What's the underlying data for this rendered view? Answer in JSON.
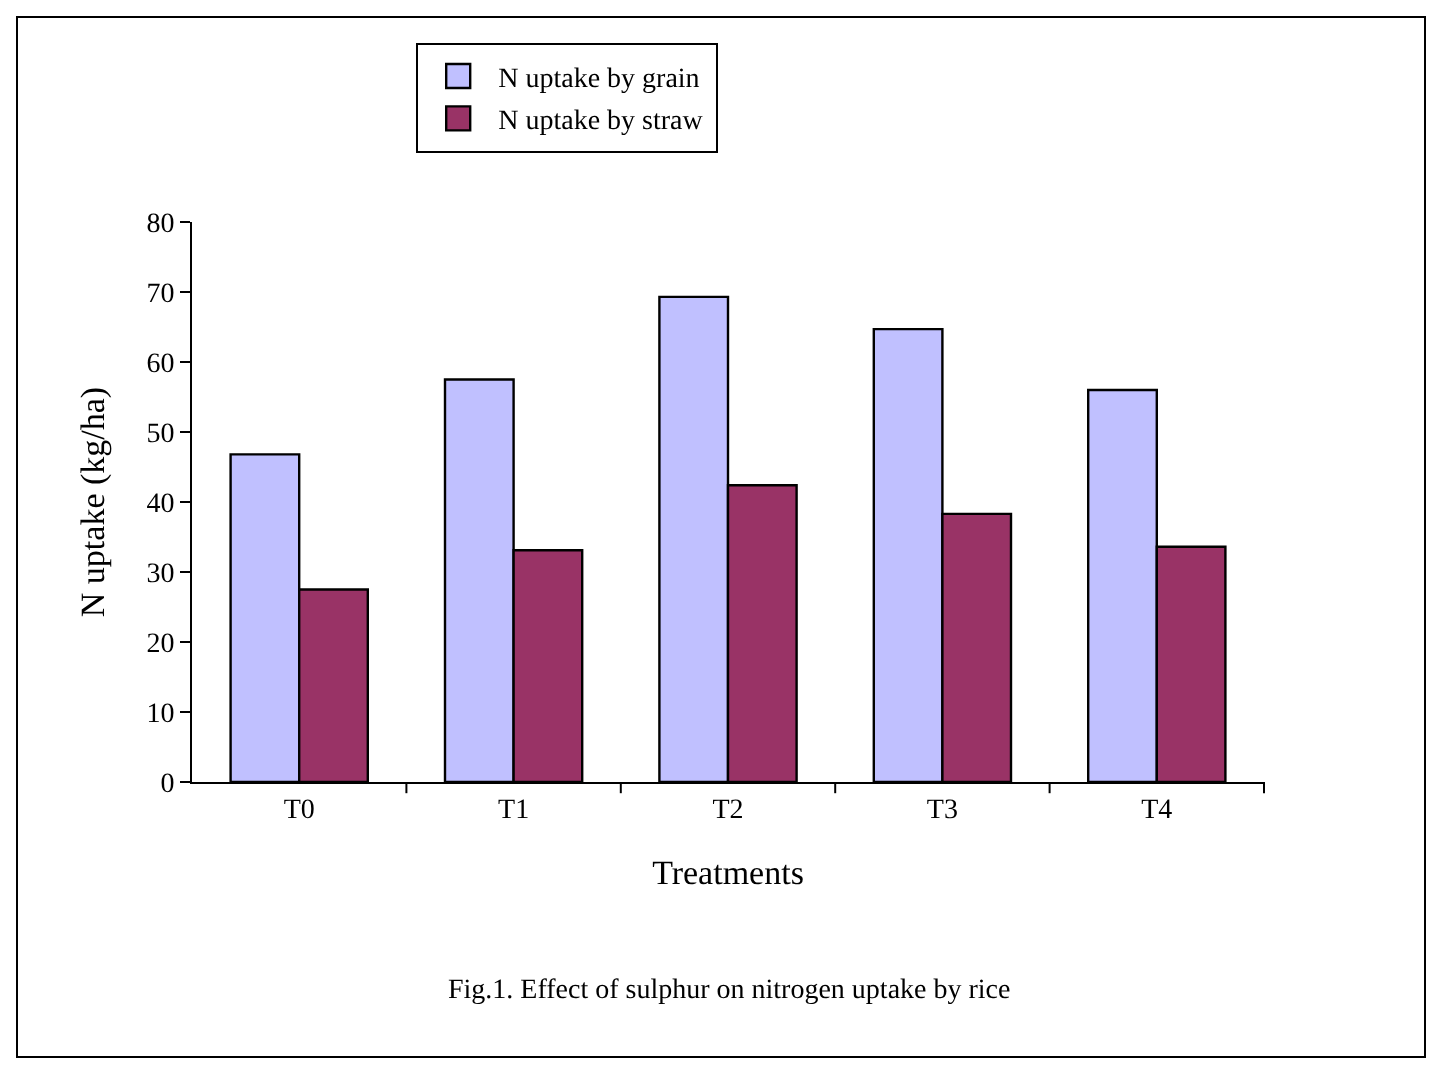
{
  "chart_data": {
    "type": "bar",
    "categories": [
      "T0",
      "T1",
      "T2",
      "T3",
      "T4"
    ],
    "series": [
      {
        "name": "N uptake by grain",
        "color": "#c0c0ff",
        "values": [
          46.8,
          57.5,
          69.3,
          64.7,
          56.0
        ]
      },
      {
        "name": "N uptake by straw",
        "color": "#993366",
        "values": [
          27.5,
          33.1,
          42.4,
          38.3,
          33.6
        ]
      }
    ],
    "xlabel": "Treatments",
    "ylabel": "N uptake (kg/ha)",
    "ylim": [
      0,
      80
    ],
    "yticks": [
      0,
      10,
      20,
      30,
      40,
      50,
      60,
      70,
      80
    ],
    "annotations": [
      "Fig.1. Effect of sulphur on nitrogen uptake by rice"
    ],
    "grid": false,
    "legend": "top"
  }
}
